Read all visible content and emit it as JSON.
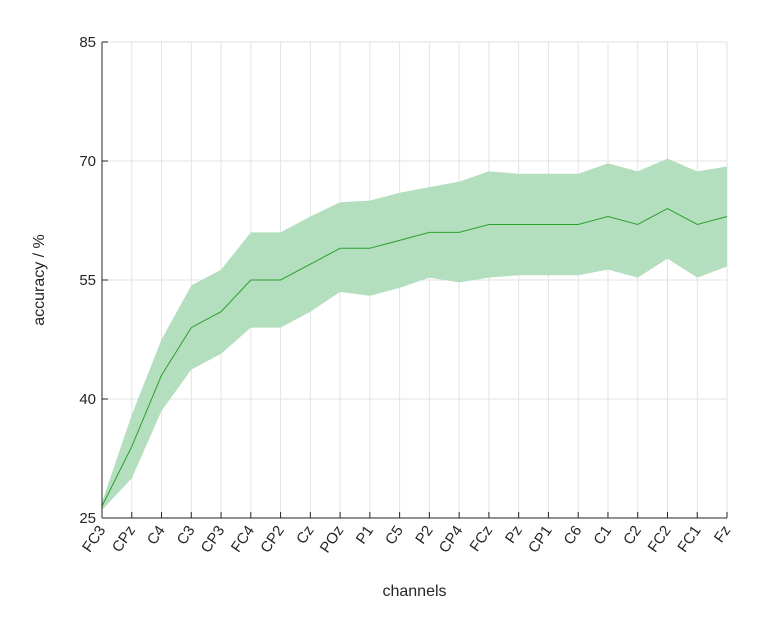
{
  "chart_data": {
    "type": "line",
    "xlabel": "channels",
    "ylabel": "accuracy / %",
    "ylim": [
      25,
      85
    ],
    "yticks": [
      25,
      40,
      55,
      70,
      85
    ],
    "grid": true,
    "categories": [
      "FC3",
      "CPz",
      "C4",
      "C3",
      "CP3",
      "FC4",
      "CP2",
      "Cz",
      "POz",
      "P1",
      "C5",
      "P2",
      "CP4",
      "FCz",
      "Pz",
      "CP1",
      "C6",
      "C1",
      "C2",
      "FC2",
      "FC1",
      "Fz"
    ],
    "series": [
      {
        "values": [
          26.5,
          34,
          43,
          49,
          51,
          55,
          55,
          57,
          59,
          59,
          60,
          61,
          61,
          62,
          62,
          62,
          62,
          63,
          62,
          64,
          62,
          63
        ],
        "upper": [
          27,
          38,
          47.5,
          54.3,
          56.3,
          61,
          61,
          63,
          64.8,
          65,
          66,
          66.7,
          67.4,
          68.7,
          68.4,
          68.4,
          68.4,
          69.7,
          68.7,
          70.3,
          68.7,
          69.3
        ],
        "lower": [
          26,
          30,
          38.5,
          43.7,
          45.7,
          49,
          49,
          51,
          53.5,
          53,
          54,
          55.3,
          54.7,
          55.3,
          55.6,
          55.6,
          55.6,
          56.3,
          55.3,
          57.7,
          55.3,
          56.7
        ]
      }
    ],
    "colors": {
      "line": "#2ca02c",
      "band": "#b3dfbf",
      "grid": "#e3e3e3",
      "axis": "#262626"
    }
  }
}
